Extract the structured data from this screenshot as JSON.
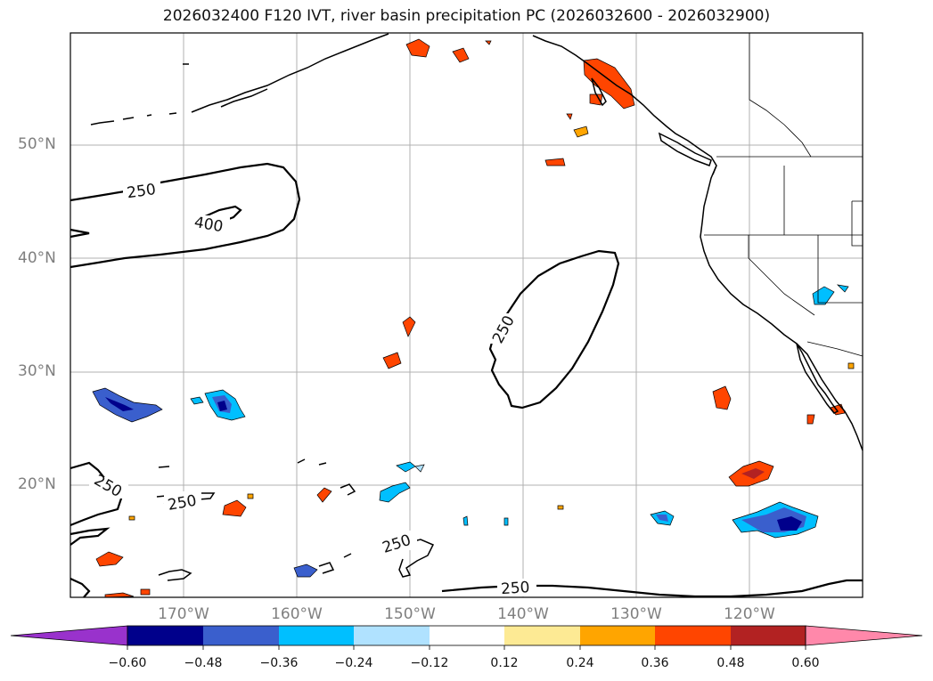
{
  "title": "2026032400 F120 IVT, river basin precipitation PC (2026032600 - 2026032900)",
  "lat_labels": [
    "50°N",
    "40°N",
    "30°N",
    "20°N"
  ],
  "lon_labels": [
    "170°W",
    "160°W",
    "150°W",
    "140°W",
    "130°W",
    "120°W"
  ],
  "ivt_contour_labels": [
    "250",
    "400",
    "250",
    "250",
    "250",
    "250",
    "250"
  ],
  "colorbar": {
    "ticks": [
      "−0.60",
      "−0.48",
      "−0.36",
      "−0.24",
      "−0.12",
      "0.12",
      "0.24",
      "0.36",
      "0.48",
      "0.60"
    ],
    "colors": [
      "#9932cc",
      "#00008b",
      "#3a5fcd",
      "#00bfff",
      "#b0e2ff",
      "#ffffff",
      "#fdea94",
      "#ffa500",
      "#ff4500",
      "#b22222",
      "#ff88aa"
    ]
  },
  "colors": {
    "contour": "#000000",
    "coast": "#000000",
    "grid": "#b0b0b0",
    "axis_label": "#7f7f7f"
  }
}
